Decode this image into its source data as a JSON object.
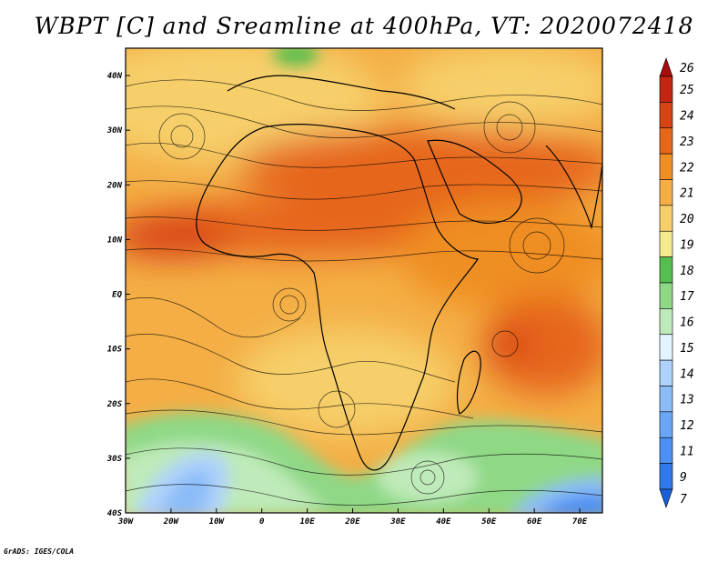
{
  "title": "WBPT [C] and Sreamline at 400hPa, VT: 2020072418",
  "credit": "GrADS: IGES/COLA",
  "map": {
    "lon_range": [
      -30,
      75
    ],
    "lat_range": [
      -40,
      45
    ],
    "lon_ticks": [
      "30W",
      "20W",
      "10W",
      "0",
      "10E",
      "20E",
      "30E",
      "40E",
      "50E",
      "60E",
      "70E"
    ],
    "lat_ticks": [
      "40S",
      "30S",
      "20S",
      "10S",
      "EQ",
      "10N",
      "20N",
      "30N",
      "40N"
    ],
    "fields": [
      "wet-bulb potential temperature",
      "streamlines"
    ]
  },
  "colorbar": {
    "labels": [
      "7",
      "9",
      "11",
      "12",
      "13",
      "14",
      "15",
      "16",
      "17",
      "18",
      "19",
      "20",
      "21",
      "22",
      "23",
      "24",
      "25",
      "26"
    ],
    "colors": [
      "#1a5fd8",
      "#2f79ec",
      "#4b90f2",
      "#6aa6f6",
      "#8bbcf8",
      "#afd2fb",
      "#e2f4fd",
      "#bfeab9",
      "#8fd886",
      "#56be4e",
      "#f5e98e",
      "#f6cf6a",
      "#f4ae45",
      "#ef8e22",
      "#e6661a",
      "#d84313",
      "#c42410",
      "#a60d0d"
    ]
  }
}
